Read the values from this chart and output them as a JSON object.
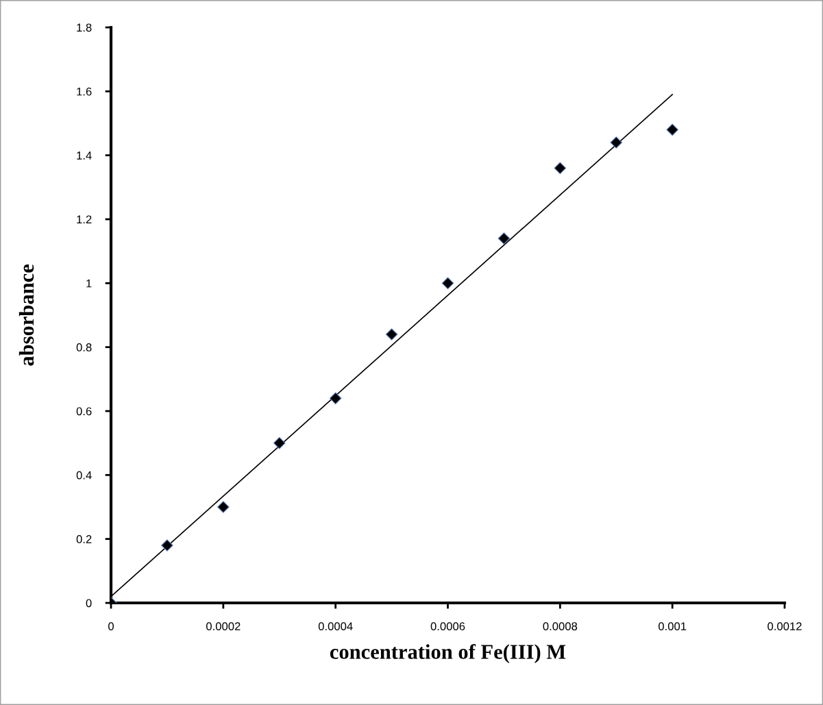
{
  "chart_data": {
    "type": "scatter",
    "xlabel": "concentration of Fe(III) M",
    "ylabel": "absorbance",
    "xlim": [
      0,
      0.0012
    ],
    "xticks": [
      {
        "value": 0,
        "label": "0"
      },
      {
        "value": 0.0002,
        "label": "0.0002"
      },
      {
        "value": 0.0004,
        "label": "0.0004"
      },
      {
        "value": 0.0006,
        "label": "0.0006"
      },
      {
        "value": 0.0008,
        "label": "0.0008"
      },
      {
        "value": 0.001,
        "label": "0.001"
      },
      {
        "value": 0.0012,
        "label": "0.0012"
      }
    ],
    "ylim": [
      0,
      1.8
    ],
    "yticks": [
      {
        "value": 0,
        "label": "0"
      },
      {
        "value": 0.2,
        "label": "0.2"
      },
      {
        "value": 0.4,
        "label": "0.4"
      },
      {
        "value": 0.6,
        "label": "0.6"
      },
      {
        "value": 0.8,
        "label": "0.8"
      },
      {
        "value": 1,
        "label": "1"
      },
      {
        "value": 1.2,
        "label": "1.2"
      },
      {
        "value": 1.4,
        "label": "1.4"
      },
      {
        "value": 1.6,
        "label": "1.6"
      },
      {
        "value": 1.8,
        "label": "1.8"
      }
    ],
    "grid": false,
    "series": [
      {
        "marker": "diamond",
        "color": "#000000",
        "x": [
          0,
          0.0001,
          0.0002,
          0.0003,
          0.0004,
          0.0005,
          0.0006,
          0.0007,
          0.0008,
          0.0009,
          0.001
        ],
        "values": [
          0,
          0.18,
          0.3,
          0.5,
          0.64,
          0.84,
          1.0,
          1.14,
          1.36,
          1.44,
          1.48
        ]
      },
      {
        "type": "line",
        "marker": "none",
        "color": "#000000",
        "x": [
          0,
          0.001
        ],
        "values": [
          0.02,
          1.59
        ]
      }
    ]
  }
}
